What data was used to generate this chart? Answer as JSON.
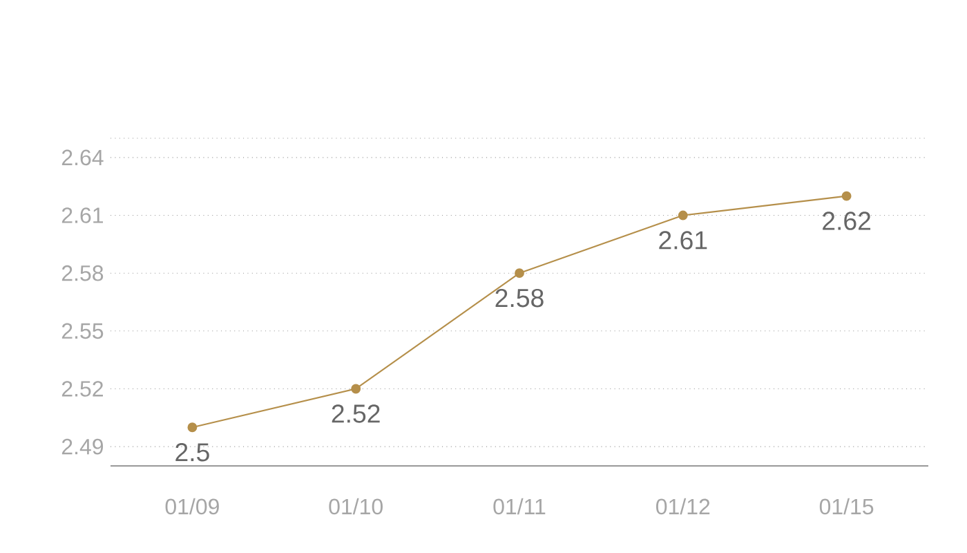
{
  "chart_data": {
    "type": "line",
    "categories": [
      "01/09",
      "01/10",
      "01/11",
      "01/12",
      "01/15"
    ],
    "series": [
      {
        "color": "#b58f4a",
        "values": [
          2.5,
          2.52,
          2.58,
          2.61,
          2.62
        ]
      }
    ],
    "ylim": [
      2.48,
      2.65
    ],
    "yticks": [
      2.49,
      2.52,
      2.55,
      2.58,
      2.61,
      2.64
    ],
    "grid": "y",
    "marker": "circle",
    "line_style": "solid",
    "data_labels": true
  }
}
